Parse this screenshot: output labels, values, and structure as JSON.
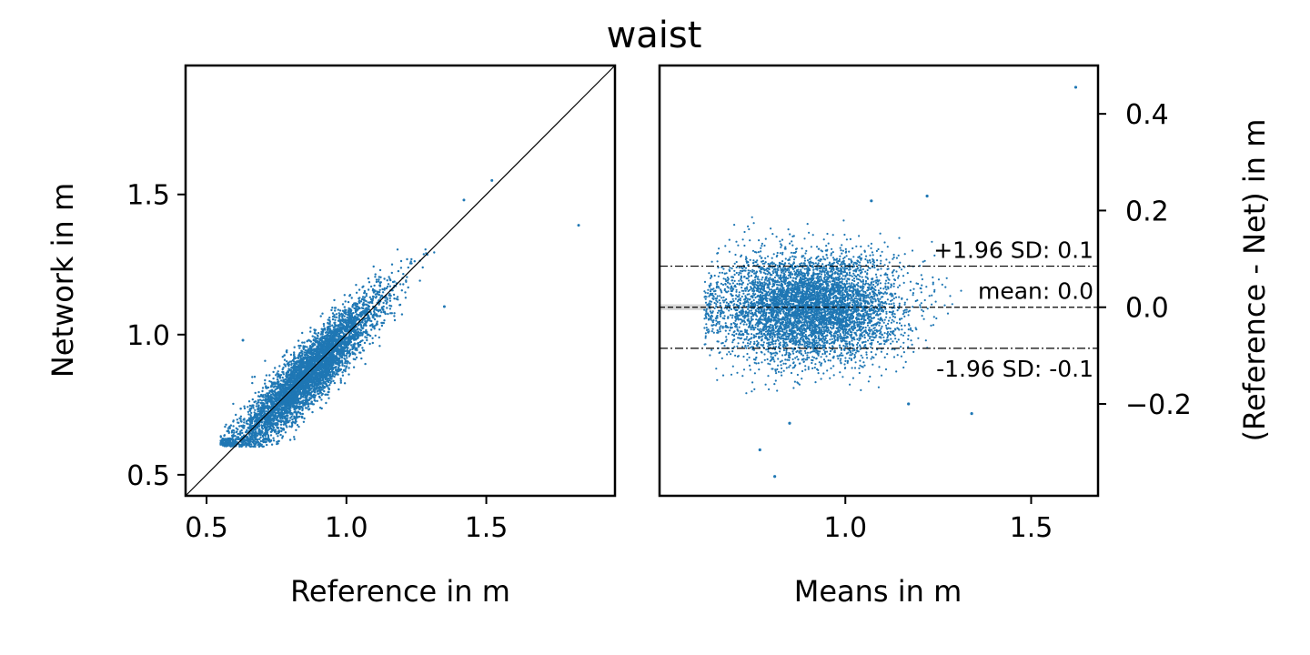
{
  "title": "waist",
  "chart_data": [
    {
      "type": "scatter",
      "name": "",
      "xlabel": "Reference in m",
      "ylabel": "Network in m",
      "xlim": [
        0.425,
        1.96
      ],
      "ylim": [
        0.425,
        1.96
      ],
      "xticks": [
        0.5,
        1.0,
        1.5
      ],
      "yticks": [
        0.5,
        1.0,
        1.5
      ],
      "xtick_labels": [
        "0.5",
        "1.0",
        "1.5"
      ],
      "ytick_labels": [
        "0.5",
        "1.0",
        "1.5"
      ],
      "identity_line": true,
      "point_color": "#1f77b4",
      "grid": false,
      "cloud": {
        "description_points": [
          [
            0.55,
            0.62
          ],
          [
            0.7,
            0.72
          ],
          [
            0.85,
            0.86
          ],
          [
            1.0,
            0.98
          ],
          [
            1.15,
            1.12
          ],
          [
            1.3,
            1.27
          ],
          [
            1.45,
            1.42
          ]
        ],
        "x_range": [
          0.55,
          1.45
        ],
        "y_range": [
          0.6,
          1.52
        ]
      },
      "outliers": [
        [
          1.83,
          1.39
        ],
        [
          1.52,
          1.55
        ],
        [
          1.42,
          1.48
        ],
        [
          0.63,
          0.98
        ],
        [
          1.35,
          1.1
        ]
      ]
    },
    {
      "type": "scatter",
      "name": "",
      "xlabel": "Means in m",
      "ylabel": "(Reference - Net) in m",
      "xlim": [
        0.5,
        1.68
      ],
      "ylim": [
        -0.39,
        0.5
      ],
      "xticks": [
        1.0,
        1.5
      ],
      "yticks": [
        -0.2,
        0.0,
        0.2,
        0.4
      ],
      "xtick_labels": [
        "1.0",
        "1.5"
      ],
      "ytick_labels": [
        "−0.2",
        "0.0",
        "0.2",
        "0.4"
      ],
      "yaxis_position": "right",
      "point_color": "#1f77b4",
      "grid": false,
      "reference_lines": [
        {
          "value": 0.085,
          "style": "dashdot",
          "label": "+1.96 SD: 0.1"
        },
        {
          "value": 0.0,
          "style": "dashed",
          "label": "mean: 0.0"
        },
        {
          "value": -0.085,
          "style": "dashdot",
          "label": "-1.96 SD: -0.1"
        }
      ],
      "cloud": {
        "x_range": [
          0.62,
          1.4
        ],
        "y_range": [
          -0.17,
          0.18
        ]
      },
      "outliers": [
        [
          1.62,
          0.455
        ],
        [
          1.22,
          0.23
        ],
        [
          1.07,
          0.22
        ],
        [
          0.81,
          -0.35
        ],
        [
          0.77,
          -0.295
        ],
        [
          1.34,
          -0.22
        ],
        [
          1.17,
          -0.2
        ],
        [
          0.85,
          -0.24
        ]
      ]
    }
  ]
}
